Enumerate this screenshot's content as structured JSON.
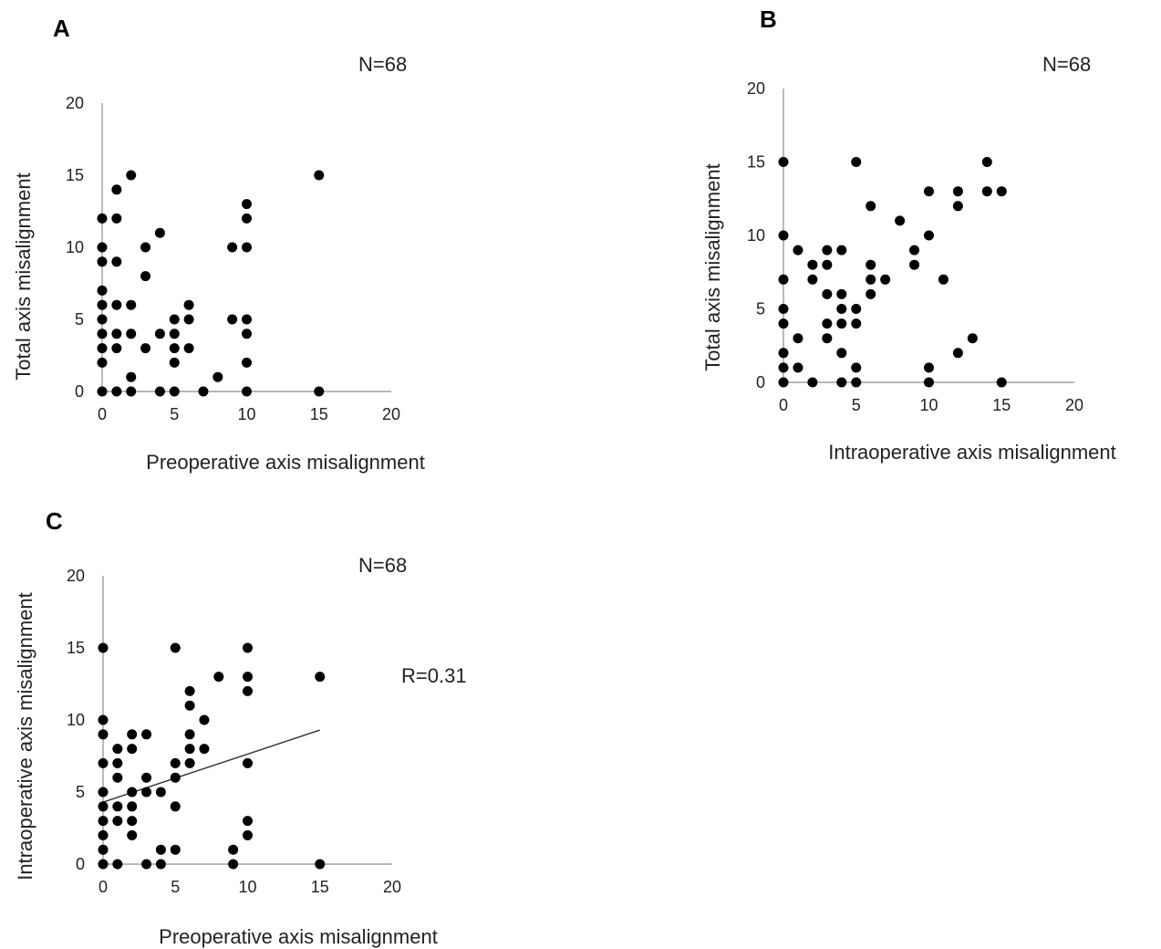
{
  "chart_data": [
    {
      "panel": "A",
      "type": "scatter",
      "annotation": "N=68",
      "xlabel": "Preoperative axis misalignment",
      "ylabel": "Total axis misalignment",
      "xlim": [
        0,
        20
      ],
      "ylim": [
        0,
        20
      ],
      "xticks": [
        0,
        5,
        10,
        15,
        20
      ],
      "yticks": [
        0,
        5,
        10,
        15,
        20
      ],
      "points": [
        [
          0,
          0
        ],
        [
          0,
          2
        ],
        [
          0,
          3
        ],
        [
          0,
          4
        ],
        [
          0,
          5
        ],
        [
          0,
          6
        ],
        [
          0,
          7
        ],
        [
          0,
          9
        ],
        [
          0,
          10
        ],
        [
          0,
          12
        ],
        [
          1,
          0
        ],
        [
          1,
          3
        ],
        [
          1,
          4
        ],
        [
          1,
          6
        ],
        [
          1,
          9
        ],
        [
          1,
          12
        ],
        [
          1,
          14
        ],
        [
          2,
          0
        ],
        [
          2,
          1
        ],
        [
          2,
          4
        ],
        [
          2,
          6
        ],
        [
          2,
          15
        ],
        [
          3,
          3
        ],
        [
          3,
          8
        ],
        [
          3,
          10
        ],
        [
          4,
          0
        ],
        [
          4,
          4
        ],
        [
          4,
          11
        ],
        [
          5,
          0
        ],
        [
          5,
          2
        ],
        [
          5,
          3
        ],
        [
          5,
          4
        ],
        [
          5,
          5
        ],
        [
          6,
          3
        ],
        [
          6,
          5
        ],
        [
          6,
          6
        ],
        [
          7,
          0
        ],
        [
          8,
          1
        ],
        [
          9,
          5
        ],
        [
          9,
          10
        ],
        [
          10,
          0
        ],
        [
          10,
          2
        ],
        [
          10,
          4
        ],
        [
          10,
          5
        ],
        [
          10,
          10
        ],
        [
          10,
          12
        ],
        [
          10,
          13
        ],
        [
          15,
          0
        ],
        [
          15,
          15
        ]
      ]
    },
    {
      "panel": "B",
      "type": "scatter",
      "annotation": "N=68",
      "xlabel": "Intraoperative  axis misalignment",
      "ylabel": "Total axis misalignment",
      "xlim": [
        0,
        20
      ],
      "ylim": [
        0,
        20
      ],
      "xticks": [
        0,
        5,
        10,
        15,
        20
      ],
      "yticks": [
        0,
        5,
        10,
        15,
        20
      ],
      "points": [
        [
          0,
          0
        ],
        [
          0,
          1
        ],
        [
          0,
          2
        ],
        [
          0,
          4
        ],
        [
          0,
          5
        ],
        [
          0,
          7
        ],
        [
          0,
          10
        ],
        [
          0,
          15
        ],
        [
          1,
          1
        ],
        [
          1,
          3
        ],
        [
          1,
          9
        ],
        [
          2,
          0
        ],
        [
          2,
          7
        ],
        [
          2,
          8
        ],
        [
          3,
          3
        ],
        [
          3,
          4
        ],
        [
          3,
          6
        ],
        [
          3,
          8
        ],
        [
          3,
          9
        ],
        [
          4,
          0
        ],
        [
          4,
          2
        ],
        [
          4,
          4
        ],
        [
          4,
          5
        ],
        [
          4,
          6
        ],
        [
          4,
          9
        ],
        [
          5,
          0
        ],
        [
          5,
          1
        ],
        [
          5,
          4
        ],
        [
          5,
          5
        ],
        [
          5,
          15
        ],
        [
          6,
          6
        ],
        [
          6,
          7
        ],
        [
          6,
          8
        ],
        [
          6,
          12
        ],
        [
          7,
          7
        ],
        [
          8,
          11
        ],
        [
          9,
          8
        ],
        [
          9,
          9
        ],
        [
          10,
          0
        ],
        [
          10,
          1
        ],
        [
          10,
          10
        ],
        [
          10,
          13
        ],
        [
          11,
          7
        ],
        [
          12,
          2
        ],
        [
          12,
          12
        ],
        [
          12,
          13
        ],
        [
          13,
          3
        ],
        [
          14,
          13
        ],
        [
          14,
          15
        ],
        [
          15,
          0
        ],
        [
          15,
          13
        ]
      ]
    },
    {
      "panel": "C",
      "type": "scatter",
      "annotation": "N=68",
      "r_label": "R=0.31",
      "xlabel": "Preoperative axis misalignment",
      "ylabel": "Intraoperative  axis misalignment",
      "xlim": [
        0,
        20
      ],
      "ylim": [
        0,
        20
      ],
      "xticks": [
        0,
        5,
        10,
        15,
        20
      ],
      "yticks": [
        0,
        5,
        10,
        15,
        20
      ],
      "trendline": {
        "x": [
          0,
          15
        ],
        "y": [
          4.3,
          9.3
        ]
      },
      "points": [
        [
          0,
          0
        ],
        [
          0,
          1
        ],
        [
          0,
          2
        ],
        [
          0,
          3
        ],
        [
          0,
          4
        ],
        [
          0,
          5
        ],
        [
          0,
          7
        ],
        [
          0,
          9
        ],
        [
          0,
          10
        ],
        [
          0,
          15
        ],
        [
          1,
          0
        ],
        [
          1,
          3
        ],
        [
          1,
          4
        ],
        [
          1,
          6
        ],
        [
          1,
          7
        ],
        [
          1,
          8
        ],
        [
          2,
          2
        ],
        [
          2,
          3
        ],
        [
          2,
          4
        ],
        [
          2,
          5
        ],
        [
          2,
          8
        ],
        [
          2,
          9
        ],
        [
          3,
          0
        ],
        [
          3,
          5
        ],
        [
          3,
          6
        ],
        [
          3,
          9
        ],
        [
          4,
          0
        ],
        [
          4,
          1
        ],
        [
          4,
          5
        ],
        [
          5,
          1
        ],
        [
          5,
          4
        ],
        [
          5,
          6
        ],
        [
          5,
          7
        ],
        [
          5,
          15
        ],
        [
          6,
          7
        ],
        [
          6,
          8
        ],
        [
          6,
          9
        ],
        [
          6,
          11
        ],
        [
          6,
          12
        ],
        [
          7,
          8
        ],
        [
          7,
          10
        ],
        [
          8,
          13
        ],
        [
          9,
          0
        ],
        [
          9,
          1
        ],
        [
          10,
          2
        ],
        [
          10,
          3
        ],
        [
          10,
          7
        ],
        [
          10,
          12
        ],
        [
          10,
          13
        ],
        [
          10,
          15
        ],
        [
          15,
          0
        ],
        [
          15,
          13
        ]
      ]
    }
  ]
}
